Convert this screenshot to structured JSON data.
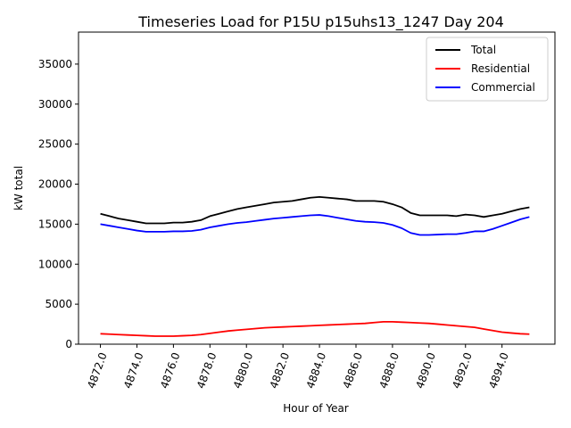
{
  "chart_data": {
    "type": "line",
    "title": "Timeseries Load for P15U p15uhs13_1247  Day 204",
    "xlabel": "Hour of Year",
    "ylabel": "kW total",
    "xlim": [
      4870.8,
      4896.9
    ],
    "ylim": [
      0,
      39000
    ],
    "xticks": [
      4872,
      4874,
      4876,
      4878,
      4880,
      4882,
      4884,
      4886,
      4888,
      4890,
      4892,
      4894
    ],
    "xtick_labels": [
      "4872.0",
      "4874.0",
      "4876.0",
      "4878.0",
      "4880.0",
      "4882.0",
      "4884.0",
      "4886.0",
      "4888.0",
      "4890.0",
      "4892.0",
      "4894.0"
    ],
    "yticks": [
      0,
      5000,
      10000,
      15000,
      20000,
      25000,
      30000,
      35000
    ],
    "ytick_labels": [
      "0",
      "5000",
      "10000",
      "15000",
      "20000",
      "25000",
      "30000",
      "35000"
    ],
    "grid": false,
    "legend_position": "top-right",
    "x": [
      4872.0,
      4872.5,
      4873.0,
      4873.5,
      4874.0,
      4874.5,
      4875.0,
      4875.5,
      4876.0,
      4876.5,
      4877.0,
      4877.5,
      4878.0,
      4878.5,
      4879.0,
      4879.5,
      4880.0,
      4880.5,
      4881.0,
      4881.5,
      4882.0,
      4882.5,
      4883.0,
      4883.5,
      4884.0,
      4884.5,
      4885.0,
      4885.5,
      4886.0,
      4886.5,
      4887.0,
      4887.5,
      4888.0,
      4888.5,
      4889.0,
      4889.5,
      4890.0,
      4890.5,
      4891.0,
      4891.5,
      4892.0,
      4892.5,
      4893.0,
      4893.5,
      4894.0,
      4894.5,
      4895.0,
      4895.5
    ],
    "series": [
      {
        "name": "Total",
        "color": "#000000",
        "values": [
          16300,
          16000,
          15700,
          15500,
          15300,
          15100,
          15100,
          15100,
          15200,
          15200,
          15300,
          15500,
          16000,
          16300,
          16600,
          16900,
          17100,
          17300,
          17500,
          17700,
          17800,
          17900,
          18100,
          18300,
          18400,
          18300,
          18200,
          18100,
          17900,
          17900,
          17900,
          17800,
          17500,
          17100,
          16400,
          16100,
          16100,
          16100,
          16100,
          16000,
          16200,
          16100,
          15900,
          16100,
          16300,
          16600,
          16900,
          17100
        ]
      },
      {
        "name": "Residential",
        "color": "#ff0000",
        "values": [
          1300,
          1250,
          1200,
          1150,
          1100,
          1050,
          1000,
          1000,
          1000,
          1050,
          1100,
          1200,
          1350,
          1500,
          1650,
          1750,
          1850,
          1950,
          2050,
          2100,
          2150,
          2200,
          2250,
          2300,
          2350,
          2400,
          2450,
          2500,
          2550,
          2600,
          2700,
          2800,
          2800,
          2750,
          2700,
          2650,
          2600,
          2500,
          2400,
          2300,
          2200,
          2100,
          1900,
          1700,
          1500,
          1400,
          1300,
          1250
        ]
      },
      {
        "name": "Commercial",
        "color": "#0000ff",
        "values": [
          15000,
          14800,
          14600,
          14400,
          14200,
          14050,
          14050,
          14050,
          14100,
          14100,
          14150,
          14300,
          14600,
          14800,
          15000,
          15150,
          15250,
          15400,
          15550,
          15700,
          15800,
          15900,
          16000,
          16100,
          16150,
          16000,
          15800,
          15600,
          15400,
          15300,
          15250,
          15150,
          14900,
          14500,
          13900,
          13650,
          13650,
          13700,
          13750,
          13750,
          13900,
          14100,
          14100,
          14400,
          14800,
          15200,
          15600,
          15900
        ]
      }
    ]
  }
}
